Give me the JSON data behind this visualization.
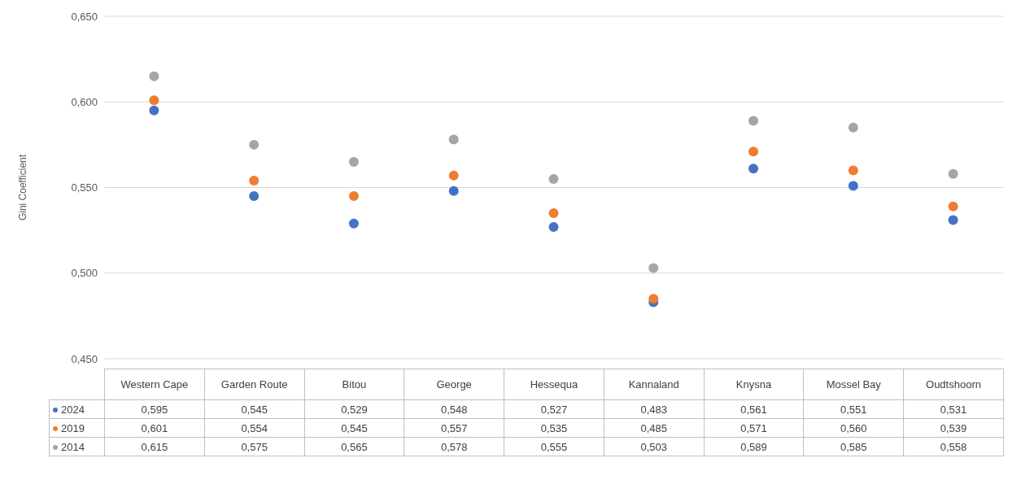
{
  "chart_data": {
    "type": "scatter",
    "ylabel": "Gini Coefficient",
    "categories": [
      "Western Cape",
      "Garden Route",
      "Bitou",
      "George",
      "Hessequa",
      "Kannaland",
      "Knysna",
      "Mossel Bay",
      "Oudtshoorn"
    ],
    "series": [
      {
        "name": "2024",
        "color": "#4472c4",
        "values": [
          0.595,
          0.545,
          0.529,
          0.548,
          0.527,
          0.483,
          0.561,
          0.551,
          0.531
        ],
        "value_labels": [
          "0,595",
          "0,545",
          "0,529",
          "0,548",
          "0,527",
          "0,483",
          "0,561",
          "0,551",
          "0,531"
        ]
      },
      {
        "name": "2019",
        "color": "#ed7d31",
        "values": [
          0.601,
          0.554,
          0.545,
          0.557,
          0.535,
          0.485,
          0.571,
          0.56,
          0.539
        ],
        "value_labels": [
          "0,601",
          "0,554",
          "0,545",
          "0,557",
          "0,535",
          "0,485",
          "0,571",
          "0,560",
          "0,539"
        ]
      },
      {
        "name": "2014",
        "color": "#a5a5a5",
        "values": [
          0.615,
          0.575,
          0.565,
          0.578,
          0.555,
          0.503,
          0.589,
          0.585,
          0.558
        ],
        "value_labels": [
          "0,615",
          "0,575",
          "0,565",
          "0,578",
          "0,555",
          "0,503",
          "0,589",
          "0,585",
          "0,558"
        ]
      }
    ],
    "ylim": [
      0.45,
      0.65
    ],
    "yticks": [
      {
        "value": 0.45,
        "label": "0,450"
      },
      {
        "value": 0.5,
        "label": "0,500"
      },
      {
        "value": 0.55,
        "label": "0,550"
      },
      {
        "value": 0.6,
        "label": "0,600"
      },
      {
        "value": 0.65,
        "label": "0,650"
      }
    ],
    "grid": "y",
    "marker": "circle",
    "legend": "bottom left"
  }
}
